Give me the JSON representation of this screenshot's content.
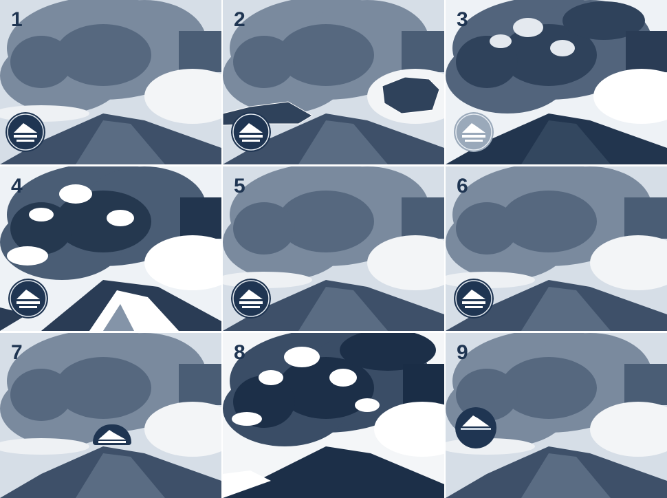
{
  "colors": {
    "ink": "#1f3552",
    "sky": "#dbe3ec",
    "plume": "#6f8095",
    "ash_dark": "#2f425b",
    "cloud": "#f2f4f6"
  },
  "panels": [
    {
      "label": "1",
      "logo": "volcano-logo-badge",
      "variant": "normal"
    },
    {
      "label": "2",
      "logo": "volcano-logo-badge",
      "variant": "normal"
    },
    {
      "label": "3",
      "logo": "volcano-logo-badge",
      "variant": "high-contrast"
    },
    {
      "label": "4",
      "logo": "volcano-logo-badge",
      "variant": "high-contrast"
    },
    {
      "label": "5",
      "logo": "volcano-logo-badge",
      "variant": "normal"
    },
    {
      "label": "6",
      "logo": "volcano-logo-badge",
      "variant": "normal"
    },
    {
      "label": "7",
      "logo": "volcano-logo-badge",
      "variant": "normal"
    },
    {
      "label": "8",
      "logo": "",
      "variant": "high-contrast"
    },
    {
      "label": "9",
      "logo": "volcano-logo-badge",
      "variant": "normal"
    }
  ]
}
